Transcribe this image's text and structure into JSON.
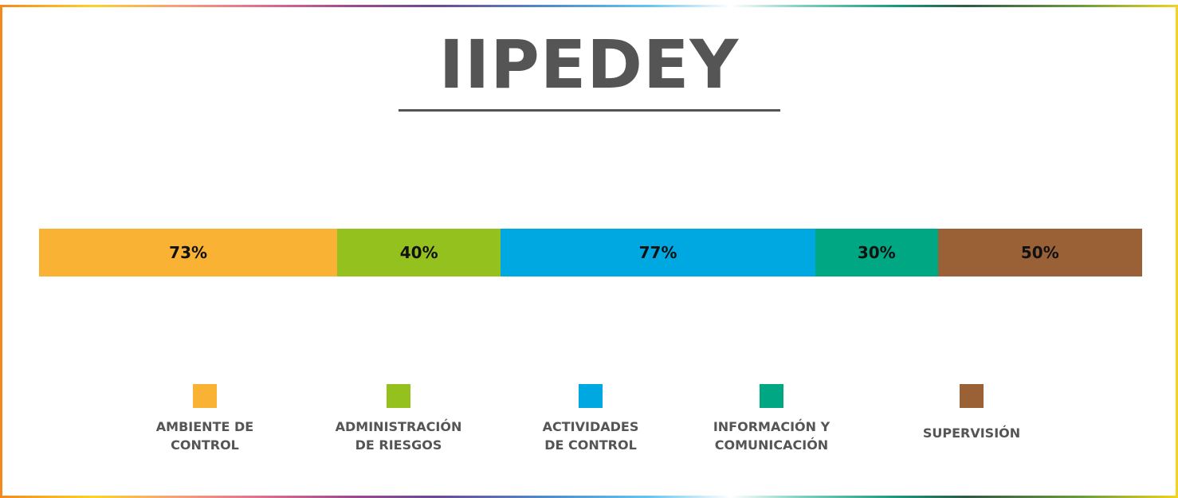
{
  "chart_data": {
    "type": "bar",
    "orientation": "horizontal-stacked",
    "title": "IIPEDEY",
    "categories": [
      "AMBIENTE DE\nCONTROL",
      "ADMINISTRACIÓN\nDE RIESGOS",
      "ACTIVIDADES\nDE CONTROL",
      "INFORMACIÓN Y\nCOMUNICACIÓN",
      "SUPERVISIÓN"
    ],
    "values": [
      73,
      40,
      77,
      30,
      50
    ],
    "labels": [
      "73%",
      "40%",
      "77%",
      "30%",
      "50%"
    ],
    "colors": [
      "#f9b233",
      "#95c11f",
      "#00a8e1",
      "#00a783",
      "#9a6036"
    ],
    "legend": "bottom"
  }
}
